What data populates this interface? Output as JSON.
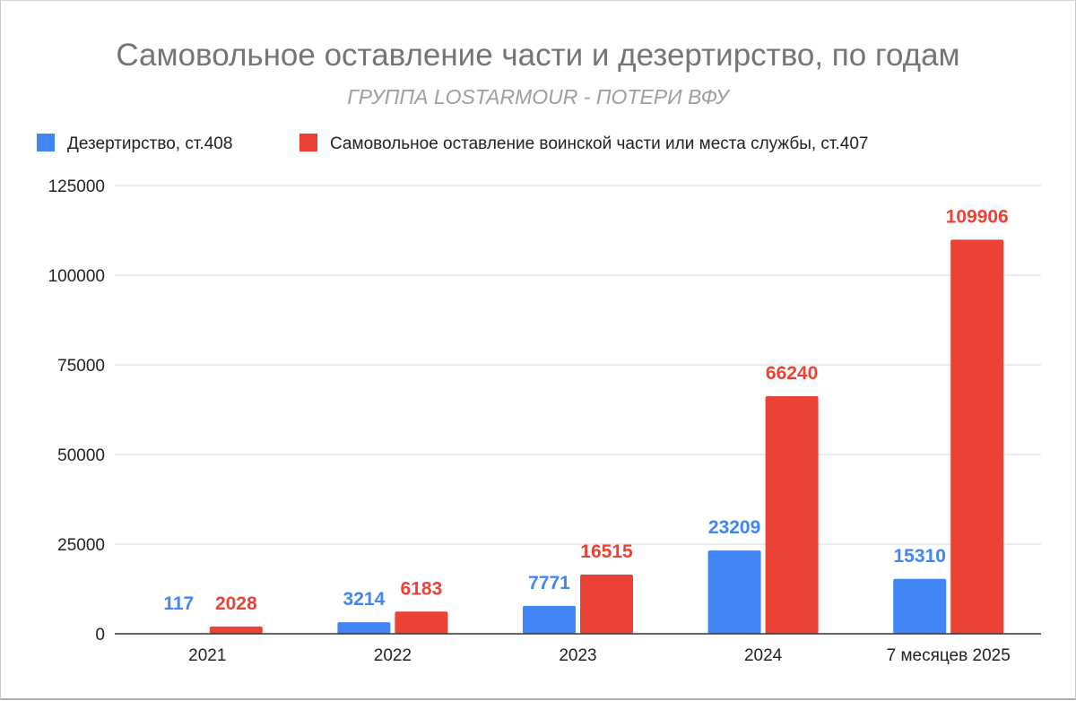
{
  "chart_data": {
    "type": "bar",
    "title": "Самовольное оставление части и дезертирство, по годам",
    "subtitle": "ГРУППА LOSTARMOUR - ПОТЕРИ ВФУ",
    "categories": [
      "2021",
      "2022",
      "2023",
      "2024",
      "7 месяцев 2025"
    ],
    "series": [
      {
        "name": "Дезертирство, ст.408",
        "color": "#4285f4",
        "values": [
          117,
          3214,
          7771,
          23209,
          15310
        ]
      },
      {
        "name": "Самовольное оставление воинской части или места службы, ст.407",
        "color": "#ea4335",
        "values": [
          2028,
          6183,
          16515,
          66240,
          109906
        ]
      }
    ],
    "ylim": [
      0,
      125000
    ],
    "yticks": [
      0,
      25000,
      50000,
      75000,
      100000,
      125000
    ],
    "xlabel": "",
    "ylabel": "",
    "legend_position": "top-left",
    "grid": true
  }
}
